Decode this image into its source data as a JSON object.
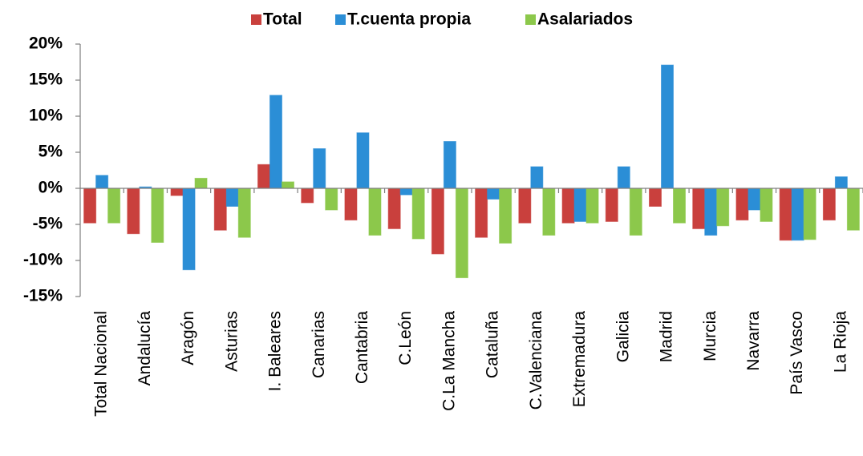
{
  "chart_data": {
    "type": "bar",
    "categories": [
      "Total Nacional",
      "Andalucía",
      "Aragón",
      "Asturias",
      "I. Baleares",
      "Canarias",
      "Cantabria",
      "C.León",
      "C.La Mancha",
      "Cataluña",
      "C.Valenciana",
      "Extremadura",
      "Galicia",
      "Madrid",
      "Murcia",
      "Navarra",
      "País Vasco",
      "La Rioja"
    ],
    "series": [
      {
        "name": "Total",
        "color": "#c9403d",
        "values": [
          -4.8,
          -6.3,
          -1.0,
          -5.8,
          3.3,
          -2.0,
          -4.4,
          -5.6,
          -9.1,
          -6.8,
          -4.8,
          -4.8,
          -4.6,
          -2.5,
          -5.6,
          -4.4,
          -7.2,
          -4.4
        ]
      },
      {
        "name": "T.cuenta propia",
        "color": "#2b8ed6",
        "values": [
          1.8,
          0.2,
          -11.3,
          -2.5,
          12.9,
          5.5,
          7.7,
          -0.9,
          6.5,
          -1.5,
          3.0,
          -4.6,
          3.0,
          17.1,
          -6.5,
          -3.0,
          -7.2,
          1.6
        ]
      },
      {
        "name": "Asalariados",
        "color": "#8cc84b",
        "values": [
          -4.8,
          -7.5,
          1.4,
          -6.8,
          0.9,
          -3.0,
          -6.5,
          -7.0,
          -12.4,
          -7.6,
          -6.5,
          -4.8,
          -6.5,
          -4.8,
          -5.2,
          -4.6,
          -7.1,
          -5.8
        ]
      }
    ],
    "ylim": [
      -15,
      20
    ],
    "yticks": [
      {
        "value": -15,
        "label": "-15%"
      },
      {
        "value": -10,
        "label": "-10%"
      },
      {
        "value": -5,
        "label": "-5%"
      },
      {
        "value": 0,
        "label": "0%"
      },
      {
        "value": 5,
        "label": "5%"
      },
      {
        "value": 10,
        "label": "10%"
      },
      {
        "value": 15,
        "label": "15%"
      },
      {
        "value": 20,
        "label": "20%"
      }
    ],
    "legend": "top"
  }
}
